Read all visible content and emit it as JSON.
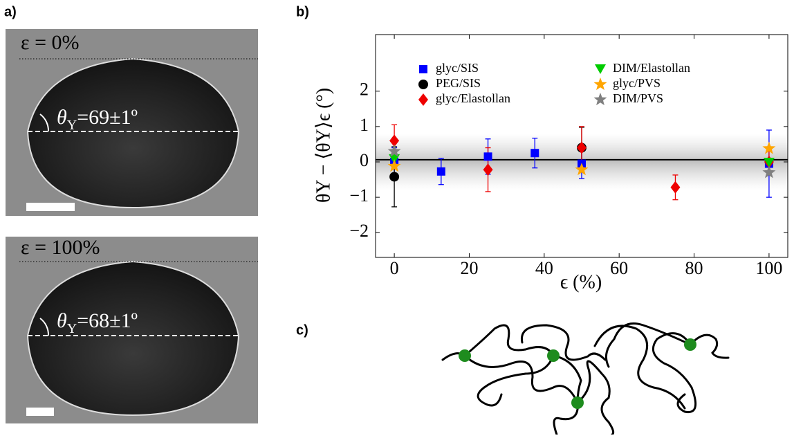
{
  "panel_labels": [
    "a)",
    "b)",
    "c)"
  ],
  "photos": [
    {
      "strain_label": "ε = 0%",
      "angle_symbol": "θ",
      "angle_subscript": "Y",
      "angle_value": "=69±1º"
    },
    {
      "strain_label": "ε = 100%",
      "angle_symbol": "θ",
      "angle_subscript": "Y",
      "angle_value": "=68±1º"
    }
  ],
  "chart_data": {
    "type": "scatter",
    "x_label": "ϵ (%)",
    "y_label": "θY − ⟨θY⟩ϵ (°)",
    "xlim": [
      -5,
      105
    ],
    "xticks": [
      0,
      20,
      40,
      60,
      80,
      100
    ],
    "ylim": [
      -2.7,
      3.6
    ],
    "yticks": [
      {
        "value": -2,
        "label": "−2"
      },
      {
        "value": -1,
        "label": "−1"
      },
      0,
      1,
      2
    ],
    "mean_line": 0.06,
    "band": [
      -0.8,
      0.8
    ],
    "series": [
      {
        "name": "glyc/SIS",
        "color": "#0000ff",
        "marker": "square",
        "x": [
          0,
          12.5,
          25,
          37.5,
          50,
          100
        ],
        "values": [
          0.0,
          -0.27,
          0.15,
          0.25,
          -0.05,
          -0.05
        ],
        "errors": [
          0.4,
          0.37,
          0.5,
          0.42,
          0.42,
          0.95
        ]
      },
      {
        "name": "PEG/SIS",
        "color": "#000000",
        "marker": "circle",
        "x": [
          0,
          50
        ],
        "values": [
          -0.42,
          0.4
        ],
        "errors": [
          0.85,
          0.58
        ]
      },
      {
        "name": "glyc/Elastollan",
        "color": "#ee0000",
        "marker": "diamond",
        "x": [
          0,
          25,
          50,
          75,
          100
        ],
        "values": [
          0.6,
          -0.22,
          0.4,
          -0.72,
          0.0
        ],
        "errors": [
          0.45,
          0.62,
          0.6,
          0.35,
          0.3
        ]
      },
      {
        "name": "DIM/Elastollan",
        "color": "#00cc00",
        "marker": "triangle",
        "x": [
          0,
          100
        ],
        "values": [
          0.08,
          -0.02
        ]
      },
      {
        "name": "glyc/PVS",
        "color": "#ffa500",
        "marker": "star",
        "x": [
          0,
          50,
          100
        ],
        "values": [
          -0.12,
          -0.22,
          0.38
        ]
      },
      {
        "name": "DIM/PVS",
        "color": "#808080",
        "marker": "star",
        "x": [
          0,
          100
        ],
        "values": [
          0.3,
          -0.3
        ]
      }
    ]
  }
}
